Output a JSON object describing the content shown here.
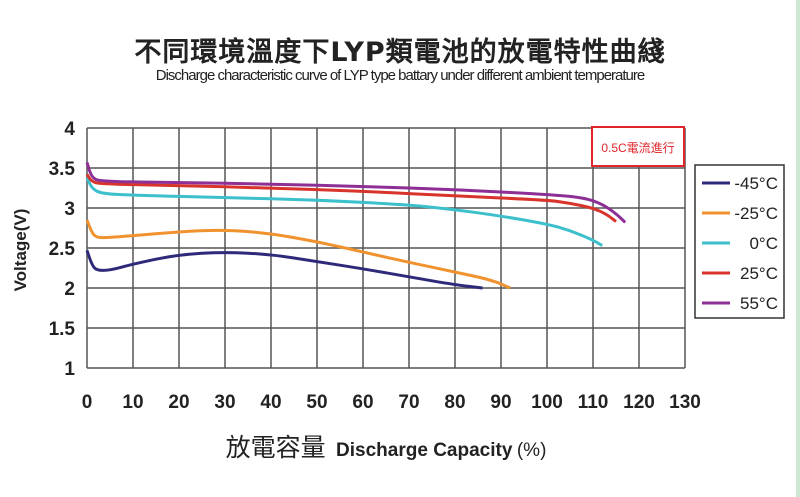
{
  "title": "不同環境溫度下LYP類電池的放電特性曲綫",
  "subtitle": "Discharge characteristic curve of LYP type battary under different ambient temperature",
  "annotation": "0.5C電流進行",
  "annotation_color": "#e0262b",
  "chart_data": {
    "type": "line",
    "title": "不同環境溫度下LYP類電池的放電特性曲綫",
    "subtitle": "Discharge characteristic curve of LYP type battary under different ambient temperature",
    "xlabel_cn": "放電容量",
    "xlabel": "Discharge Capacity",
    "xlabel_unit": "(%)",
    "ylabel": "Voltage(V)",
    "xlim": [
      0,
      130
    ],
    "ylim": [
      1,
      4
    ],
    "xticks": [
      "0",
      "10",
      "20",
      "30",
      "40",
      "50",
      "60",
      "70",
      "80",
      "90",
      "100",
      "110",
      "120",
      "130"
    ],
    "yticks": [
      "1",
      "1.5",
      "2",
      "2.5",
      "3",
      "3.5",
      "4"
    ],
    "grid": true,
    "legend_position": "right",
    "series": [
      {
        "name": "-45°C",
        "color": "#2e2a7a",
        "x": [
          0,
          1,
          2,
          5,
          10,
          20,
          30,
          40,
          50,
          60,
          70,
          80,
          86
        ],
        "y": [
          2.47,
          2.3,
          2.22,
          2.22,
          2.3,
          2.42,
          2.45,
          2.42,
          2.33,
          2.24,
          2.14,
          2.04,
          2.0
        ]
      },
      {
        "name": "-25°C",
        "color": "#f0922e",
        "x": [
          0,
          1,
          2,
          5,
          15,
          25,
          32,
          40,
          50,
          60,
          70,
          80,
          88,
          92
        ],
        "y": [
          2.85,
          2.7,
          2.63,
          2.63,
          2.68,
          2.72,
          2.72,
          2.68,
          2.58,
          2.45,
          2.32,
          2.2,
          2.1,
          2.0
        ]
      },
      {
        "name": "0°C",
        "color": "#3cc0cc",
        "x": [
          0,
          1,
          3,
          10,
          30,
          50,
          70,
          80,
          90,
          100,
          105,
          110,
          112
        ],
        "y": [
          3.38,
          3.25,
          3.18,
          3.16,
          3.13,
          3.1,
          3.04,
          2.98,
          2.9,
          2.8,
          2.72,
          2.6,
          2.53
        ]
      },
      {
        "name": "25°C",
        "color": "#d9342b",
        "x": [
          0,
          1,
          3,
          20,
          40,
          60,
          80,
          100,
          105,
          110,
          113,
          115
        ],
        "y": [
          3.42,
          3.33,
          3.3,
          3.28,
          3.25,
          3.21,
          3.15,
          3.1,
          3.06,
          3.0,
          2.92,
          2.83
        ]
      },
      {
        "name": "55°C",
        "color": "#8e2f96",
        "x": [
          0,
          1,
          3,
          20,
          40,
          60,
          80,
          100,
          108,
          112,
          115,
          117
        ],
        "y": [
          3.57,
          3.38,
          3.33,
          3.32,
          3.3,
          3.27,
          3.23,
          3.17,
          3.13,
          3.05,
          2.93,
          2.82
        ]
      }
    ]
  }
}
